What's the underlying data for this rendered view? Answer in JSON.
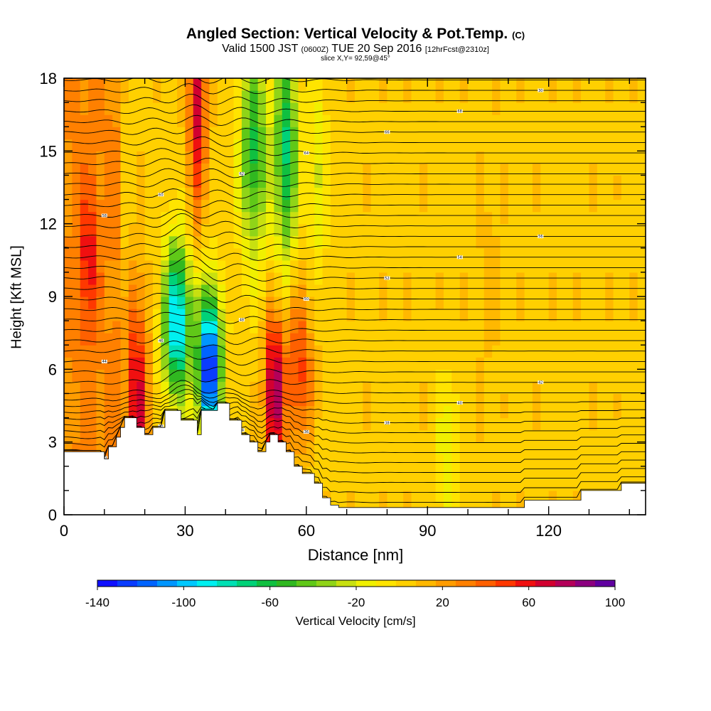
{
  "titles": {
    "main": "Angled Section: Vertical Velocity & Pot.Temp.",
    "main_units": "(C)",
    "valid_prefix": "Valid 1500 JST",
    "valid_utc": "(0600Z)",
    "valid_date": "TUE 20 Sep 2016",
    "forecast": "[12hrFcst@2310z]",
    "slice": "slice X,Y= 92,59@45°"
  },
  "chart_data": {
    "type": "heatmap",
    "title": "Angled Section: Vertical Velocity & Pot.Temp. (C)",
    "subtitle": "Valid 1500 JST (0600Z) TUE 20 Sep 2016 [12hrFcst@2310z]",
    "slice_info": "slice X,Y= 92,59@45°",
    "xlabel": "Distance [nm]",
    "ylabel": "Height [Kft MSL]",
    "xlim": [
      0,
      144
    ],
    "ylim": [
      0,
      18
    ],
    "x_ticks": [
      0,
      30,
      60,
      90,
      120
    ],
    "y_ticks": [
      0,
      3,
      6,
      9,
      12,
      15,
      18
    ],
    "colorbar": {
      "label": "Vertical Velocity [cm/s]",
      "min": -140,
      "max": 100,
      "step": 10,
      "tick_values": [
        -140,
        -100,
        -60,
        -20,
        20,
        60,
        100
      ],
      "tick_labels": [
        "-140",
        "-100",
        "-60",
        "-20",
        "20",
        "60",
        "100"
      ],
      "colors": [
        "#1010ff",
        "#0a3cff",
        "#0064ff",
        "#0096ff",
        "#00c8ff",
        "#00f0f0",
        "#00e0b4",
        "#00d278",
        "#10c040",
        "#30b820",
        "#60c818",
        "#90d418",
        "#c8e010",
        "#f0f000",
        "#ffe400",
        "#ffd000",
        "#ffb800",
        "#ff9c00",
        "#ff8000",
        "#ff6000",
        "#ff3800",
        "#f01010",
        "#d20030",
        "#b4005a",
        "#8c0080",
        "#6000a0"
      ]
    },
    "velocity_features": [
      {
        "x": 6,
        "y": 10.5,
        "value": 40
      },
      {
        "x": 18,
        "y": 4.5,
        "value": 70
      },
      {
        "x": 28,
        "y": 8,
        "value": -100
      },
      {
        "x": 33,
        "y": 17,
        "value": 70
      },
      {
        "x": 36,
        "y": 6,
        "value": -140
      },
      {
        "x": 47,
        "y": 15,
        "value": -60
      },
      {
        "x": 52,
        "y": 5,
        "value": 90
      },
      {
        "x": 55,
        "y": 15,
        "value": -70
      },
      {
        "x": 58,
        "y": 6,
        "value": 50
      },
      {
        "x": 63,
        "y": 14,
        "value": -20
      },
      {
        "x": 95,
        "y": 2.5,
        "value": -20
      },
      {
        "x": 105,
        "y": 10,
        "value": 10
      }
    ],
    "theta_contours": {
      "base_value_c": 30,
      "interval_c": 1,
      "labels": [
        "30",
        "32",
        "34",
        "36",
        "38",
        "40",
        "42",
        "44",
        "46",
        "48",
        "50",
        "52",
        "54",
        "56",
        "58",
        "60",
        "62",
        "64",
        "66",
        "68"
      ]
    },
    "terrain_nm_kft": [
      [
        0,
        2.6
      ],
      [
        10,
        2.6
      ],
      [
        10,
        2.3
      ],
      [
        11,
        2.3
      ],
      [
        11,
        2.8
      ],
      [
        13,
        2.8
      ],
      [
        13,
        3.2
      ],
      [
        14,
        3.2
      ],
      [
        14,
        3.6
      ],
      [
        15,
        3.6
      ],
      [
        15,
        4.0
      ],
      [
        18,
        4.0
      ],
      [
        18,
        3.6
      ],
      [
        20,
        3.6
      ],
      [
        20,
        3.3
      ],
      [
        22,
        3.3
      ],
      [
        22,
        3.6
      ],
      [
        25,
        3.6
      ],
      [
        25,
        4.3
      ],
      [
        29,
        4.3
      ],
      [
        29,
        3.9
      ],
      [
        33,
        3.9
      ],
      [
        33,
        3.3
      ],
      [
        34,
        3.3
      ],
      [
        34,
        4.3
      ],
      [
        38,
        4.3
      ],
      [
        38,
        4.6
      ],
      [
        41,
        4.6
      ],
      [
        41,
        3.9
      ],
      [
        44,
        3.9
      ],
      [
        44,
        3.3
      ],
      [
        46,
        3.3
      ],
      [
        46,
        3.0
      ],
      [
        48,
        3.0
      ],
      [
        48,
        2.6
      ],
      [
        50,
        2.6
      ],
      [
        50,
        3.0
      ],
      [
        51,
        3.0
      ],
      [
        51,
        3.3
      ],
      [
        53,
        3.3
      ],
      [
        53,
        3.0
      ],
      [
        55,
        3.0
      ],
      [
        55,
        2.6
      ],
      [
        57,
        2.6
      ],
      [
        57,
        2.0
      ],
      [
        59,
        2.0
      ],
      [
        59,
        1.7
      ],
      [
        62,
        1.7
      ],
      [
        62,
        1.3
      ],
      [
        64,
        1.3
      ],
      [
        64,
        0.7
      ],
      [
        66,
        0.7
      ],
      [
        66,
        0.4
      ],
      [
        68,
        0.4
      ],
      [
        68,
        0.3
      ],
      [
        114,
        0.3
      ],
      [
        114,
        0.6
      ],
      [
        128,
        0.6
      ],
      [
        128,
        1.0
      ],
      [
        138,
        1.0
      ],
      [
        138,
        1.3
      ],
      [
        144,
        1.3
      ]
    ]
  },
  "axes": {
    "x_tick_labels": [
      "0",
      "30",
      "60",
      "90",
      "120"
    ],
    "y_tick_labels": [
      "0",
      "3",
      "6",
      "9",
      "12",
      "15",
      "18"
    ]
  }
}
